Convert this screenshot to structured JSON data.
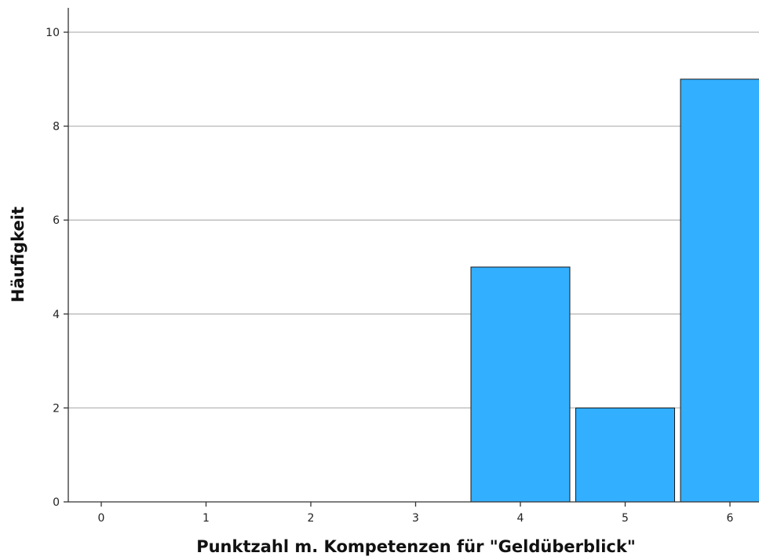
{
  "chart_data": {
    "type": "bar",
    "categories": [
      "0",
      "1",
      "2",
      "3",
      "4",
      "5",
      "6"
    ],
    "values": [
      0,
      0,
      0,
      0,
      5,
      2,
      9
    ],
    "xlabel": "Punktzahl m. Kompetenzen für \"Geldüberblick\"",
    "ylabel": "Häufigkeit",
    "ylim": [
      0,
      10
    ],
    "yticks": [
      0,
      2,
      4,
      6,
      8,
      10
    ],
    "grid": true,
    "bar_color": "#33afff"
  }
}
